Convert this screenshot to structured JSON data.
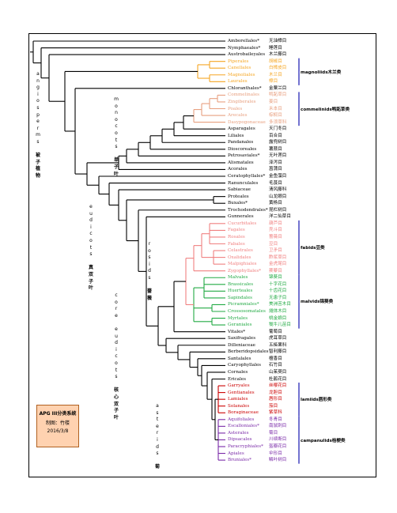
{
  "colors": {
    "black": "#000000",
    "magnoliids": "#f5a623",
    "commelinids": "#e8a080",
    "fabids": "#f08080",
    "malvids": "#22aa44",
    "lamiids": "#cc0000",
    "campanulids": "#7a2aa8",
    "bracket": "#0000aa"
  },
  "side_labels": {
    "angiosperms": {
      "letters": [
        "a",
        "n",
        "g",
        "i",
        "o",
        "s",
        "p",
        "e",
        "r",
        "m",
        "s"
      ],
      "cn": [
        "被",
        "子",
        "植",
        "物"
      ]
    },
    "monocots": {
      "letters": [
        "m",
        "o",
        "n",
        "o",
        "c",
        "o",
        "t",
        "s"
      ],
      "cn": [
        "单",
        "子",
        "叶"
      ]
    },
    "eudicots": {
      "letters": [
        "e",
        "u",
        "d",
        "i",
        "c",
        "o",
        "t",
        "s"
      ],
      "cn": [
        "真",
        "双",
        "子",
        "叶"
      ]
    },
    "core_eudicots": {
      "letters": [
        "c",
        "o",
        "r",
        "e",
        "",
        "e",
        "u",
        "d",
        "i",
        "c",
        "o",
        "t",
        "s"
      ],
      "cn": [
        "核",
        "心",
        "双",
        "子",
        "叶"
      ]
    },
    "rosids": {
      "letters": [
        "r",
        "o",
        "s",
        "i",
        "d",
        "s"
      ],
      "cn": [
        "蔷",
        "薇"
      ]
    },
    "asterids": {
      "letters": [
        "a",
        "s",
        "t",
        "e",
        "r",
        "i",
        "d",
        "s"
      ],
      "cn": [
        "菊"
      ]
    }
  },
  "clade_brackets": [
    {
      "label": "magnoliids木兰类"
    },
    {
      "label": "commelinids鸭跖草类"
    },
    {
      "label": "fabids豆类"
    },
    {
      "label": "malvids锦葵类"
    },
    {
      "label": "lamiids唇形类"
    },
    {
      "label": "campanulids桔梗类"
    }
  ],
  "legend": {
    "title": "APG III分类系统",
    "author": "制图：竹楼",
    "date": "2016/3/8"
  },
  "orders": [
    {
      "en": "Amborellales*",
      "cn": "无油樟目",
      "clade": "black"
    },
    {
      "en": "Nymphaeales*",
      "cn": "睡莲目",
      "clade": "black"
    },
    {
      "en": "Austrobaileyales",
      "cn": "木兰藤目",
      "clade": "black"
    },
    {
      "en": "Piperales",
      "cn": "胡椒目",
      "clade": "magnoliids"
    },
    {
      "en": "Canellales",
      "cn": "白樟皮目",
      "clade": "magnoliids"
    },
    {
      "en": "Magnoliales",
      "cn": "木兰目",
      "clade": "magnoliids"
    },
    {
      "en": "Laurales",
      "cn": "樟目",
      "clade": "magnoliids"
    },
    {
      "en": "Chloranthales*",
      "cn": "金粟兰目",
      "clade": "black"
    },
    {
      "en": "Commelinales",
      "cn": "鸭跖草目",
      "clade": "commelinids"
    },
    {
      "en": "Zingiberales",
      "cn": "姜目",
      "clade": "commelinids"
    },
    {
      "en": "Poales",
      "cn": "禾本目",
      "clade": "commelinids"
    },
    {
      "en": "Arecales",
      "cn": "棕榈目",
      "clade": "commelinids"
    },
    {
      "en": "Dasypogonaceae",
      "cn": "多须草科",
      "clade": "commelinids"
    },
    {
      "en": "Asparagales",
      "cn": "天门冬目",
      "clade": "black"
    },
    {
      "en": "Liliales",
      "cn": "百合目",
      "clade": "black"
    },
    {
      "en": "Pandanales",
      "cn": "露兜树目",
      "clade": "black"
    },
    {
      "en": "Dioscoreales",
      "cn": "薯蓣目",
      "clade": "black"
    },
    {
      "en": "Petrosaviales*",
      "cn": "无叶莲目",
      "clade": "black"
    },
    {
      "en": "Alismatales",
      "cn": "泽泻目",
      "clade": "black"
    },
    {
      "en": "Acorales",
      "cn": "菖蒲目",
      "clade": "black"
    },
    {
      "en": "Ceratophyllales*",
      "cn": "金鱼藻目",
      "clade": "black"
    },
    {
      "en": "Ranunculales",
      "cn": "毛茛目",
      "clade": "black"
    },
    {
      "en": "Sabiaceae",
      "cn": "清风藤科",
      "clade": "black"
    },
    {
      "en": "Proteales",
      "cn": "山龙眼目",
      "clade": "black"
    },
    {
      "en": "Buxales*",
      "cn": "黄杨目",
      "clade": "black"
    },
    {
      "en": "Trochodendrales*",
      "cn": "昆栏树目",
      "clade": "black"
    },
    {
      "en": "Gunnerales",
      "cn": "洋二仙草目",
      "clade": "black"
    },
    {
      "en": "Cucurbitales",
      "cn": "葫芦目",
      "clade": "fabids"
    },
    {
      "en": "Fagales",
      "cn": "壳斗目",
      "clade": "fabids"
    },
    {
      "en": "Rosales",
      "cn": "蔷薇目",
      "clade": "fabids"
    },
    {
      "en": "Fabales",
      "cn": "豆目",
      "clade": "fabids"
    },
    {
      "en": "Celastrales",
      "cn": "卫矛目",
      "clade": "fabids"
    },
    {
      "en": "Oxalidales",
      "cn": "酢浆草目",
      "clade": "fabids"
    },
    {
      "en": "Malpighiales",
      "cn": "金虎尾目",
      "clade": "fabids"
    },
    {
      "en": "Zygophyllales*",
      "cn": "蒺藜目",
      "clade": "fabids"
    },
    {
      "en": "Malvales",
      "cn": "锦葵目",
      "clade": "malvids"
    },
    {
      "en": "Brassicales",
      "cn": "十字花目",
      "clade": "malvids"
    },
    {
      "en": "Huerteales",
      "cn": "十齿花目",
      "clade": "malvids"
    },
    {
      "en": "Sapindales",
      "cn": "无患子目",
      "clade": "malvids"
    },
    {
      "en": "Picramniales*",
      "cn": "美洲苦木目",
      "clade": "malvids"
    },
    {
      "en": "Crossosomatales",
      "cn": "燧体木目",
      "clade": "malvids"
    },
    {
      "en": "Myrtales",
      "cn": "桃金娘目",
      "clade": "malvids"
    },
    {
      "en": "Geraniales",
      "cn": "牻牛儿苗目",
      "clade": "malvids"
    },
    {
      "en": "Vitales*",
      "cn": "葡萄目",
      "clade": "black"
    },
    {
      "en": "Saxifragales",
      "cn": "虎耳草目",
      "clade": "black"
    },
    {
      "en": "Dilleniaceae",
      "cn": "五桠果科",
      "clade": "black"
    },
    {
      "en": "Berberidopsidales",
      "cn": "智利藤目",
      "clade": "black"
    },
    {
      "en": "Santalales",
      "cn": "檀香目",
      "clade": "black"
    },
    {
      "en": "Caryophyllales",
      "cn": "石竹目",
      "clade": "black"
    },
    {
      "en": "Cornales",
      "cn": "山茱萸目",
      "clade": "black"
    },
    {
      "en": "Ericales",
      "cn": "杜鹃花目",
      "clade": "black"
    },
    {
      "en": "Garryales",
      "cn": "丝缨花目",
      "clade": "lamiids"
    },
    {
      "en": "Gentianales",
      "cn": "龙胆目",
      "clade": "lamiids"
    },
    {
      "en": "Lamiales",
      "cn": "唇形目",
      "clade": "lamiids"
    },
    {
      "en": "Solanales",
      "cn": "茄目",
      "clade": "lamiids"
    },
    {
      "en": "Boraginaceae",
      "cn": "紫草科",
      "clade": "lamiids"
    },
    {
      "en": "Aquifoliales",
      "cn": "冬青目",
      "clade": "campanulids"
    },
    {
      "en": "Escalloniales*",
      "cn": "南鼠刺目",
      "clade": "campanulids"
    },
    {
      "en": "Asterales",
      "cn": "菊目",
      "clade": "campanulids"
    },
    {
      "en": "Dipsacales",
      "cn": "川续断目",
      "clade": "campanulids"
    },
    {
      "en": "Paracryphiales*",
      "cn": "盔瓣花目",
      "clade": "campanulids"
    },
    {
      "en": "Apiales",
      "cn": "伞形目",
      "clade": "campanulids"
    },
    {
      "en": "Bruniales*",
      "cn": "鳞叶树目",
      "clade": "campanulids"
    }
  ]
}
